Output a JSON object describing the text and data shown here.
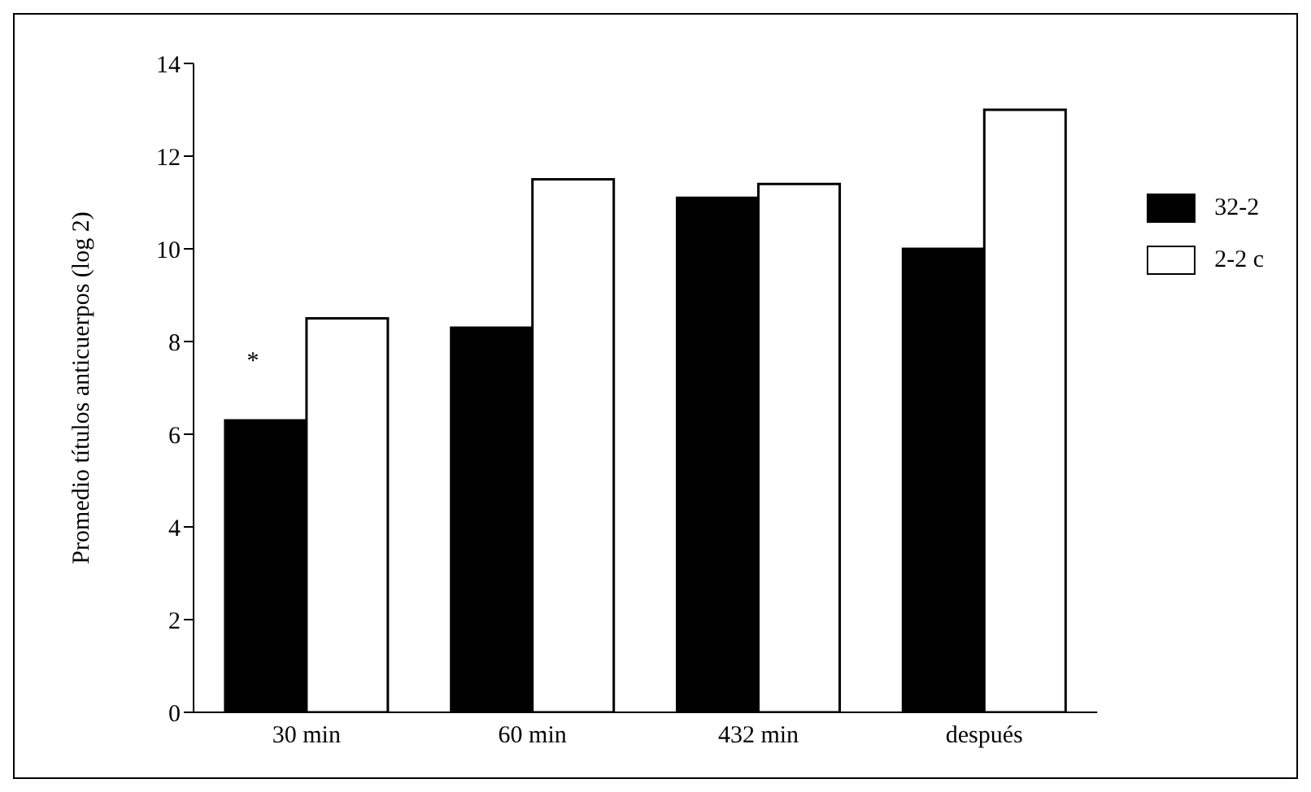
{
  "chart_data": {
    "type": "bar",
    "ylabel": "Promedio títulos anticuerpos (log 2)",
    "categories": [
      "30 min",
      "60 min",
      "432 min",
      "después"
    ],
    "series": [
      {
        "name": "32-2",
        "color": "#000000",
        "values": [
          6.3,
          8.3,
          11.1,
          10.0
        ]
      },
      {
        "name": "2-2 c",
        "color": "#ffffff",
        "values": [
          8.5,
          11.5,
          11.4,
          13.0
        ]
      }
    ],
    "ylim": [
      0,
      14
    ],
    "yticks": [
      0,
      2,
      4,
      6,
      8,
      10,
      12,
      14
    ],
    "legend": "right",
    "annotations": [
      {
        "text": "*",
        "x": "30 min",
        "y": 7.6
      }
    ]
  }
}
